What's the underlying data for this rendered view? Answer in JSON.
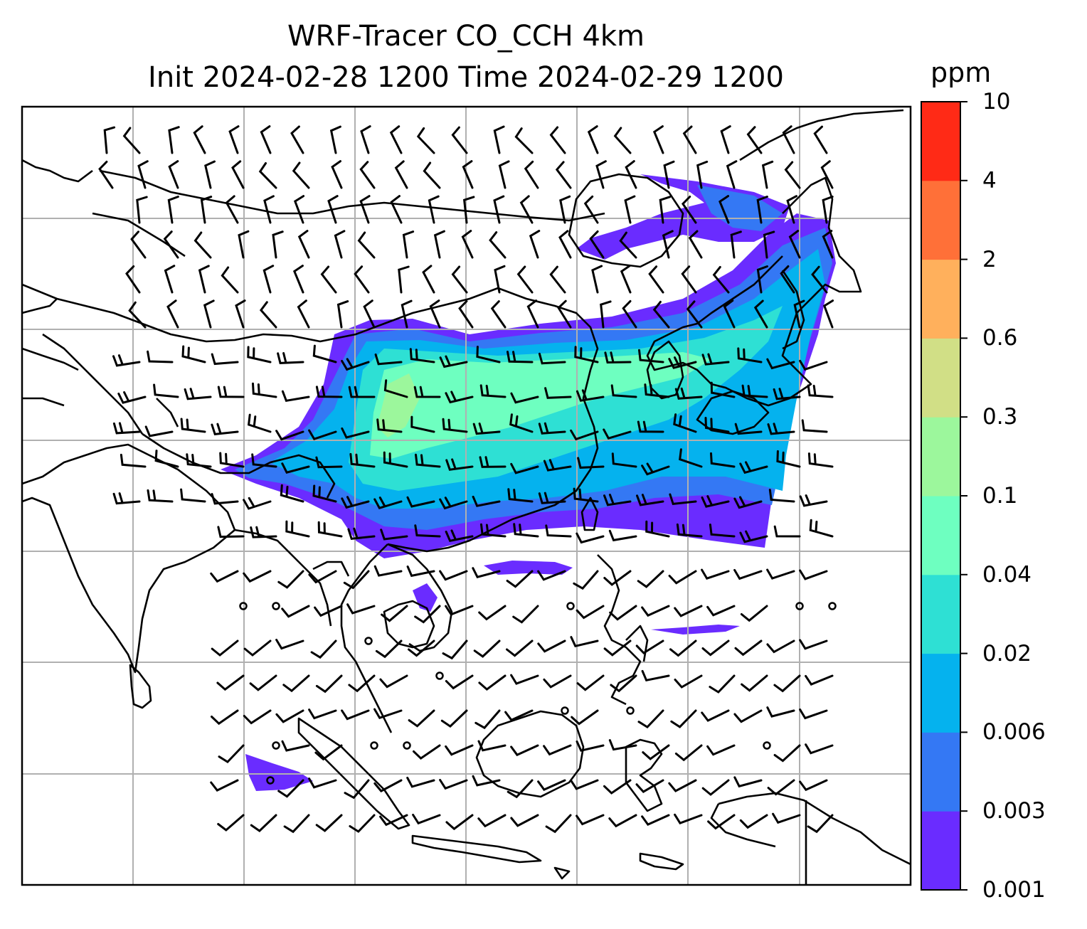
{
  "title": {
    "line1": "WRF-Tracer CO_CCH 4km",
    "line2": "Init 2024-02-28 1200 Time 2024-02-29 1200"
  },
  "colorbar": {
    "units": "ppm",
    "ticks": [
      "0.001",
      "0.003",
      "0.006",
      "0.02",
      "0.04",
      "0.1",
      "0.3",
      "0.6",
      "2",
      "4",
      "10"
    ],
    "colors": [
      "#6a2cff",
      "#3478f4",
      "#05b2ee",
      "#2ee0d4",
      "#6effc0",
      "#9cf79c",
      "#d1df86",
      "#ffb05c",
      "#ff7038",
      "#ff2a16"
    ]
  },
  "map": {
    "coastline_color": "#000000",
    "grid_color": "#b0b0b0",
    "wind_barb_color": "#000000"
  }
}
